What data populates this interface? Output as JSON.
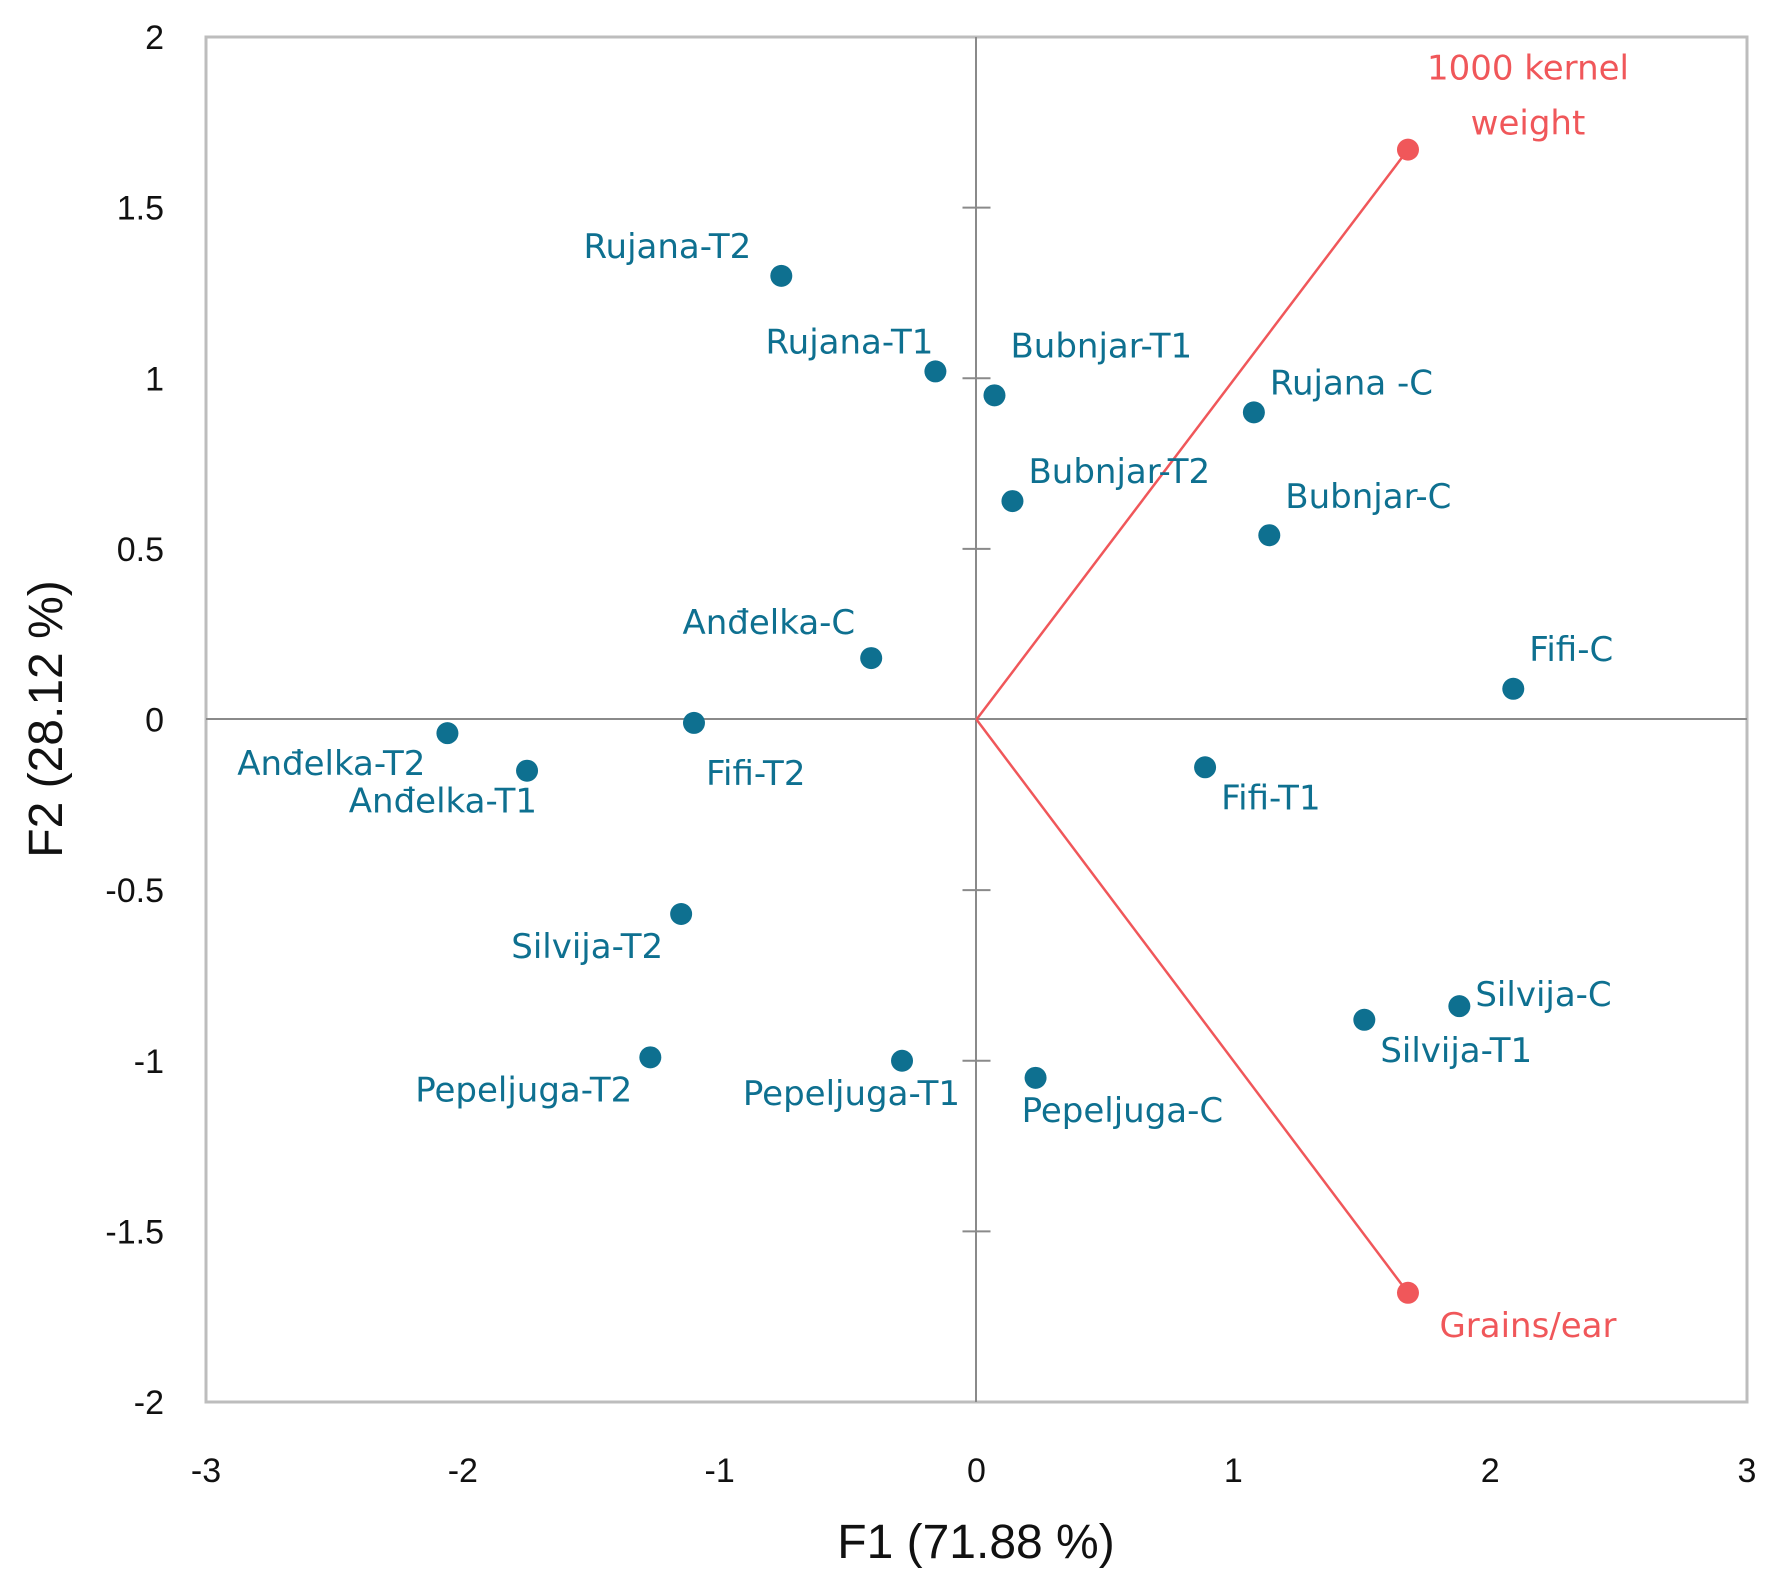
{
  "chart_data": {
    "type": "scatter",
    "xlabel": "F1 (71.88 %)",
    "ylabel": "F2 (28.12 %)",
    "xlim": [
      -3,
      3
    ],
    "ylim": [
      -2,
      2
    ],
    "xticks": [
      "-3",
      "-2",
      "-1",
      "0",
      "1",
      "2",
      "3"
    ],
    "yticks": [
      "2",
      "1.5",
      "1",
      "0.5",
      "0",
      "-0.5",
      "-1",
      "-1.5",
      "-2"
    ],
    "grid": false,
    "colors": {
      "observations": "#0e7090",
      "variables": "#f0575a",
      "frame": "#bdbdbd",
      "axes": "#8a8a8a"
    },
    "series": [
      {
        "name": "observations",
        "points": [
          {
            "label": "Rujana-T2",
            "x": -0.76,
            "y": 1.3
          },
          {
            "label": "Rujana-T1",
            "x": -0.16,
            "y": 1.02
          },
          {
            "label": "Bubnjar-T1",
            "x": 0.07,
            "y": 0.95
          },
          {
            "label": "Rujana -C",
            "x": 1.08,
            "y": 0.9
          },
          {
            "label": "Bubnjar-T2",
            "x": 0.14,
            "y": 0.64
          },
          {
            "label": "Bubnjar-C",
            "x": 1.14,
            "y": 0.54
          },
          {
            "label": "Anđelka-C",
            "x": -0.41,
            "y": 0.18
          },
          {
            "label": "Fifi-C",
            "x": 2.09,
            "y": 0.09
          },
          {
            "label": "Anđelka-T2",
            "x": -2.06,
            "y": -0.04
          },
          {
            "label": "Fifi-T2",
            "x": -1.1,
            "y": -0.01
          },
          {
            "label": "Anđelka-T1",
            "x": -1.75,
            "y": -0.15
          },
          {
            "label": "Fifi-T1",
            "x": 0.89,
            "y": -0.14
          },
          {
            "label": "Silvija-T2",
            "x": -1.15,
            "y": -0.57
          },
          {
            "label": "Silvija-C",
            "x": 1.88,
            "y": -0.84
          },
          {
            "label": "Silvija-T1",
            "x": 1.51,
            "y": -0.88
          },
          {
            "label": "Pepeljuga-T2",
            "x": -1.27,
            "y": -0.99
          },
          {
            "label": "Pepeljuga-T1",
            "x": -0.29,
            "y": -1.0
          },
          {
            "label": "Pepeljuga-C",
            "x": 0.23,
            "y": -1.05
          }
        ]
      },
      {
        "name": "variables",
        "vectors": [
          {
            "label_lines": [
              "1000 kernel",
              "weight"
            ],
            "x": 1.68,
            "y": 1.67
          },
          {
            "label_lines": [
              "Grains/ear"
            ],
            "x": 1.68,
            "y": -1.68
          }
        ]
      }
    ]
  }
}
